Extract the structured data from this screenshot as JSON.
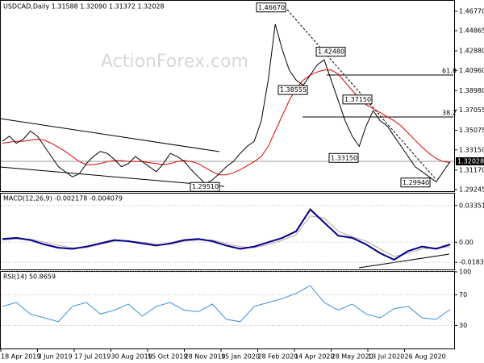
{
  "header": "USDCAD,Daily  1.31588 1.32090 1.31372 1.32028",
  "watermark": "ActionForex.com",
  "xlabels": [
    "18 Apr 2019",
    "3 Jun 2019",
    "17 Jul 2019",
    "30 Aug 2019",
    "15 Oct 2019",
    "28 Nov 2019",
    "15 Jan 2020",
    "28 Feb 2020",
    "14 Apr 2020",
    "28 May 2020",
    "13 Jul 2020",
    "26 Aug 2020"
  ],
  "chart_data": [
    {
      "type": "line",
      "ylim": [
        1.2909,
        1.478
      ],
      "yticks": [
        {
          "value": 1.4677,
          "label": "1.46770"
        },
        {
          "value": 1.44865,
          "label": "1.44865"
        },
        {
          "value": 1.4288,
          "label": "1.42880"
        },
        {
          "value": 1.4096,
          "label": "1.40960"
        },
        {
          "value": 1.3898,
          "label": "1.38980"
        },
        {
          "value": 1.37055,
          "label": "1.37055"
        },
        {
          "value": 1.35075,
          "label": "1.35075"
        },
        {
          "value": 1.3315,
          "label": "1.33150"
        },
        {
          "value": 1.3117,
          "label": "1.31170"
        },
        {
          "value": 1.29245,
          "label": "1.29245"
        }
      ],
      "last": {
        "value": 1.32028,
        "label": "1.32028"
      },
      "series": [
        {
          "name": "USDCAD",
          "color": "#000000",
          "values": [
            1.34,
            1.345,
            1.338,
            1.342,
            1.35,
            1.345,
            1.335,
            1.325,
            1.315,
            1.31,
            1.305,
            1.308,
            1.318,
            1.325,
            1.33,
            1.328,
            1.322,
            1.315,
            1.318,
            1.325,
            1.32,
            1.315,
            1.31,
            1.318,
            1.328,
            1.325,
            1.32,
            1.312,
            1.305,
            1.298,
            1.302,
            1.308,
            1.315,
            1.32,
            1.328,
            1.335,
            1.34,
            1.36,
            1.4,
            1.455,
            1.43,
            1.41,
            1.4,
            1.395,
            1.405,
            1.415,
            1.42,
            1.4,
            1.38,
            1.36,
            1.345,
            1.335,
            1.355,
            1.37,
            1.36,
            1.355,
            1.345,
            1.335,
            1.325,
            1.315,
            1.31,
            1.305,
            1.3,
            1.31,
            1.32
          ]
        },
        {
          "name": "MA",
          "color": "#e00000",
          "values": [
            1.338,
            1.339,
            1.34,
            1.34,
            1.341,
            1.342,
            1.341,
            1.338,
            1.334,
            1.33,
            1.325,
            1.32,
            1.317,
            1.317,
            1.318,
            1.32,
            1.321,
            1.321,
            1.32,
            1.32,
            1.32,
            1.319,
            1.318,
            1.317,
            1.318,
            1.32,
            1.321,
            1.32,
            1.318,
            1.314,
            1.31,
            1.307,
            1.307,
            1.309,
            1.312,
            1.316,
            1.32,
            1.325,
            1.335,
            1.35,
            1.365,
            1.38,
            1.392,
            1.4,
            1.405,
            1.408,
            1.41,
            1.41,
            1.406,
            1.398,
            1.39,
            1.382,
            1.376,
            1.372,
            1.368,
            1.364,
            1.36,
            1.355,
            1.348,
            1.341,
            1.334,
            1.328,
            1.323,
            1.32,
            1.319
          ]
        }
      ],
      "annotations": [
        {
          "value": 1.4667,
          "label": "1.46670"
        },
        {
          "value": 1.4248,
          "label": "1.42480"
        },
        {
          "value": 1.38555,
          "label": "1.38555"
        },
        {
          "value": 1.3715,
          "label": "1.37150"
        },
        {
          "value": 1.3315,
          "label": "1.33150"
        },
        {
          "value": 1.2951,
          "label": "1.29510"
        },
        {
          "value": 1.2994,
          "label": "1.29940"
        }
      ],
      "fib_labels": [
        "61.8",
        "38.2"
      ]
    },
    {
      "type": "line",
      "title": "MACD(12,26,9) -0.002178 -0.004079",
      "ylim": [
        -0.0248,
        0.0444
      ],
      "yticks": [
        0.033515,
        {
          "value": 0,
          "label": "0.00"
        },
        -0.018324
      ],
      "series": [
        {
          "name": "MACD",
          "color": "#00008b",
          "values": [
            0.003,
            0.004,
            0.002,
            -0.002,
            -0.005,
            -0.006,
            -0.004,
            -0.001,
            0.002,
            0.001,
            -0.001,
            -0.003,
            -0.001,
            0.002,
            0.003,
            0.001,
            -0.003,
            -0.006,
            -0.004,
            0.0,
            0.004,
            0.01,
            0.03,
            0.018,
            0.006,
            0.004,
            -0.002,
            -0.01,
            -0.016,
            -0.008,
            -0.004,
            -0.006,
            -0.002
          ]
        },
        {
          "name": "Signal",
          "color": "#c0a0a0",
          "values": [
            0.002,
            0.003,
            0.003,
            0.0,
            -0.003,
            -0.005,
            -0.005,
            -0.002,
            0.001,
            0.001,
            0.0,
            -0.002,
            -0.002,
            0.001,
            0.002,
            0.002,
            -0.001,
            -0.004,
            -0.005,
            -0.002,
            0.002,
            0.007,
            0.024,
            0.022,
            0.01,
            0.005,
            0.001,
            -0.006,
            -0.013,
            -0.01,
            -0.006,
            -0.005,
            -0.004
          ]
        }
      ]
    },
    {
      "type": "line",
      "title": "RSI(14) 50.8659",
      "ylim": [
        0,
        100
      ],
      "yticks": [
        100,
        70,
        30
      ],
      "series": [
        {
          "name": "RSI",
          "color": "#3c8ce0",
          "values": [
            55,
            60,
            45,
            40,
            35,
            55,
            60,
            45,
            50,
            58,
            42,
            55,
            60,
            50,
            48,
            58,
            38,
            35,
            55,
            60,
            65,
            72,
            82,
            60,
            50,
            58,
            45,
            40,
            52,
            55,
            40,
            38,
            51
          ]
        }
      ]
    }
  ]
}
